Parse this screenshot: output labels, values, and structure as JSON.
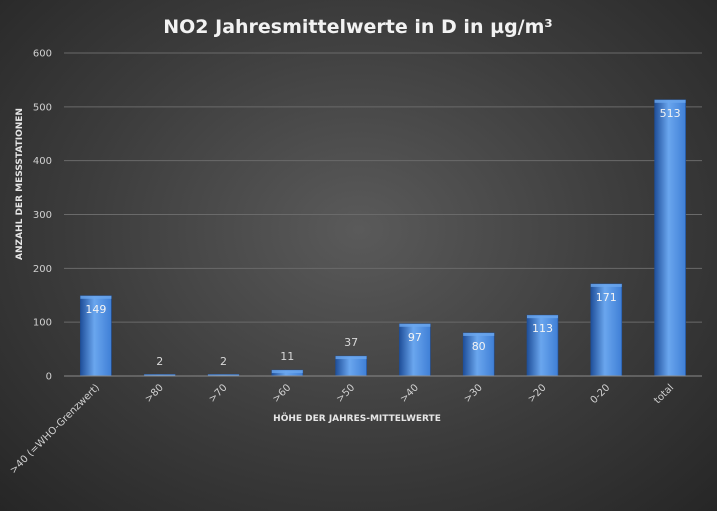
{
  "chart_data": {
    "type": "bar",
    "title": "NO2 Jahresmittelwerte  in D in µg/m³",
    "xlabel": "HÖHE DER JAHRES-MITTELWERTE",
    "ylabel": "ANZAHL DER MESSSTATIONEN",
    "categories": [
      ">40 (=WHO-Grenzwert)",
      ">80",
      ">70",
      ">60",
      ">50",
      ">40",
      ">30",
      ">20",
      "0-20",
      "total"
    ],
    "values": [
      149,
      2,
      2,
      11,
      37,
      97,
      80,
      113,
      171,
      513
    ],
    "ylim": [
      0,
      600
    ],
    "yticks": [
      0,
      100,
      200,
      300,
      400,
      500,
      600
    ],
    "grid": true,
    "legend": "none",
    "colors": {
      "bar": "#3f7fd6",
      "bar_dark": "#1f4f9a",
      "bar_light": "#6aa6ee"
    }
  }
}
